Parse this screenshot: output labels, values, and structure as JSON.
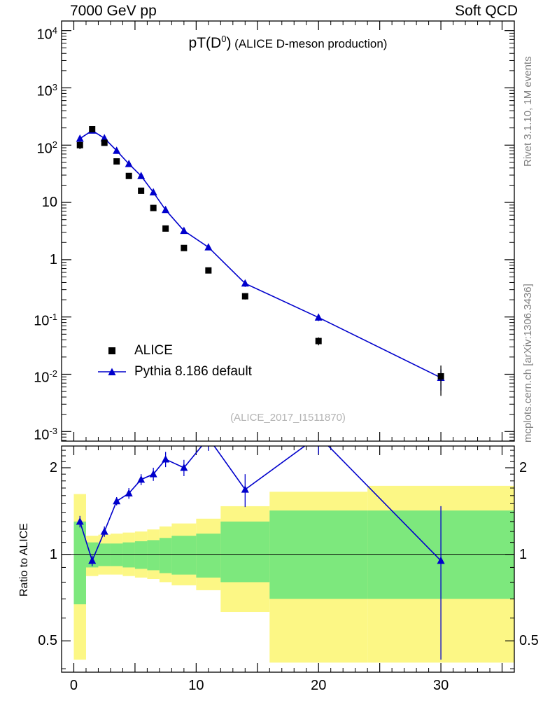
{
  "header": {
    "left": "7000 GeV pp",
    "right": "Soft QCD"
  },
  "side_notes": {
    "top_right": "Rivet 3.1.10, 1M events",
    "bottom_right": "mcplots.cern.ch [arXiv:1306.3436]"
  },
  "main_plot": {
    "title": {
      "prefix": "pT(D",
      "sup": "0",
      "suffix": ")",
      "subtitle": " (ALICE D-meson production)"
    },
    "watermark": "(ALICE_2017_I1511870)",
    "legend": [
      {
        "label": "ALICE",
        "marker": "square",
        "color": "#000000"
      },
      {
        "label": "Pythia 8.186 default",
        "marker": "triangle-line",
        "color": "#0000CC"
      }
    ]
  },
  "ratio_plot": {
    "ylabel": "Ratio to ALICE"
  },
  "chart_data": [
    {
      "type": "scatter",
      "subtype": "spectrum",
      "title": "pT(D0) (ALICE D-meson production)",
      "xlabel": "",
      "ylabel": "",
      "xlim": [
        -1,
        36
      ],
      "yscale": "log",
      "ylim": [
        0.00068,
        14700
      ],
      "grid": false,
      "legend_position": "lower-left",
      "yticks": [
        {
          "value": 10000,
          "text": "10",
          "sup": "4"
        },
        {
          "value": 1000,
          "text": "10",
          "sup": "3"
        },
        {
          "value": 100,
          "text": "10",
          "sup": "2"
        },
        {
          "value": 10,
          "text": "10",
          "sup": ""
        },
        {
          "value": 1,
          "text": "1",
          "sup": ""
        },
        {
          "value": 0.1,
          "text": "10",
          "sup": "-1"
        },
        {
          "value": 0.01,
          "text": "10",
          "sup": "-2"
        },
        {
          "value": 0.001,
          "text": "10",
          "sup": "-3"
        }
      ],
      "series": [
        {
          "name": "ALICE",
          "marker": "square",
          "color": "#000000",
          "line": false,
          "x": [
            0.5,
            1.5,
            2.5,
            3.5,
            4.5,
            5.5,
            6.5,
            7.5,
            9,
            11,
            14,
            20,
            30
          ],
          "y": [
            100,
            190,
            110,
            52,
            29,
            16,
            8,
            3.5,
            1.6,
            0.65,
            0.23,
            0.038,
            0.0092
          ],
          "yerr": [
            15,
            20,
            10,
            5,
            3,
            1.6,
            0.8,
            0.35,
            0.16,
            0.065,
            0.028,
            0.006,
            0.005
          ]
        },
        {
          "name": "Pythia 8.186 default",
          "marker": "triangle",
          "color": "#0000CC",
          "line": true,
          "x": [
            0.5,
            1.5,
            2.5,
            3.5,
            4.5,
            5.5,
            6.5,
            7.5,
            9,
            11,
            14,
            20,
            30
          ],
          "y": [
            130,
            180,
            132,
            80,
            47,
            29,
            15,
            7.4,
            3.2,
            1.65,
            0.385,
            0.098,
            0.0087
          ],
          "yerr": [
            6,
            7,
            6,
            4,
            2.5,
            1.8,
            1.1,
            0.6,
            0.28,
            0.16,
            0.05,
            0.013,
            0.0035
          ]
        }
      ]
    },
    {
      "type": "scatter",
      "subtype": "ratio",
      "ylabel": "Ratio to ALICE",
      "xlim": [
        -1,
        36
      ],
      "yscale": "log",
      "ylim": [
        0.389,
        2.38
      ],
      "reference_line": 1,
      "yticks": [
        {
          "value": 2,
          "label": "2"
        },
        {
          "value": 1,
          "label": "1"
        },
        {
          "value": 0.5,
          "label": "0.5"
        }
      ],
      "xticks": [
        {
          "value": 0,
          "label": "0"
        },
        {
          "value": 10,
          "label": "10"
        },
        {
          "value": 20,
          "label": "20"
        },
        {
          "value": 30,
          "label": "30"
        }
      ],
      "band_colors": {
        "outer": "#FCF785",
        "inner": "#7DE87D"
      },
      "bands": [
        {
          "x0": 0,
          "x1": 1,
          "yellow": [
            0.43,
            1.62
          ],
          "green": [
            0.67,
            1.3
          ]
        },
        {
          "x0": 1,
          "x1": 2,
          "yellow": [
            0.84,
            1.16
          ],
          "green": [
            0.9,
            1.1
          ]
        },
        {
          "x0": 2,
          "x1": 3,
          "yellow": [
            0.85,
            1.17
          ],
          "green": [
            0.91,
            1.09
          ]
        },
        {
          "x0": 3,
          "x1": 4,
          "yellow": [
            0.85,
            1.18
          ],
          "green": [
            0.91,
            1.09
          ]
        },
        {
          "x0": 4,
          "x1": 5,
          "yellow": [
            0.84,
            1.19
          ],
          "green": [
            0.9,
            1.1
          ]
        },
        {
          "x0": 5,
          "x1": 6,
          "yellow": [
            0.83,
            1.2
          ],
          "green": [
            0.89,
            1.11
          ]
        },
        {
          "x0": 6,
          "x1": 7,
          "yellow": [
            0.82,
            1.22
          ],
          "green": [
            0.88,
            1.12
          ]
        },
        {
          "x0": 7,
          "x1": 8,
          "yellow": [
            0.8,
            1.25
          ],
          "green": [
            0.86,
            1.14
          ]
        },
        {
          "x0": 8,
          "x1": 10,
          "yellow": [
            0.78,
            1.28
          ],
          "green": [
            0.85,
            1.16
          ]
        },
        {
          "x0": 10,
          "x1": 12,
          "yellow": [
            0.75,
            1.33
          ],
          "green": [
            0.83,
            1.18
          ]
        },
        {
          "x0": 12,
          "x1": 16,
          "yellow": [
            0.63,
            1.47
          ],
          "green": [
            0.8,
            1.3
          ]
        },
        {
          "x0": 16,
          "x1": 24,
          "yellow": [
            0.42,
            1.65
          ],
          "green": [
            0.7,
            1.42
          ]
        },
        {
          "x0": 24,
          "x1": 36,
          "yellow": [
            0.42,
            1.73
          ],
          "green": [
            0.7,
            1.42
          ]
        }
      ],
      "series": [
        {
          "name": "Pythia 8.186 default / ALICE",
          "marker": "triangle",
          "color": "#0000CC",
          "line": true,
          "x": [
            0.5,
            1.5,
            2.5,
            3.5,
            4.5,
            5.5,
            6.5,
            7.5,
            9,
            11,
            14,
            20,
            30
          ],
          "y": [
            1.3,
            0.95,
            1.2,
            1.53,
            1.63,
            1.82,
            1.9,
            2.14,
            2.0,
            2.54,
            1.68,
            2.58,
            0.95
          ],
          "yerr": [
            0.06,
            0.04,
            0.05,
            0.05,
            0.07,
            0.08,
            0.1,
            0.13,
            0.13,
            0.25,
            0.22,
            0.35,
            0.52
          ]
        }
      ]
    }
  ]
}
